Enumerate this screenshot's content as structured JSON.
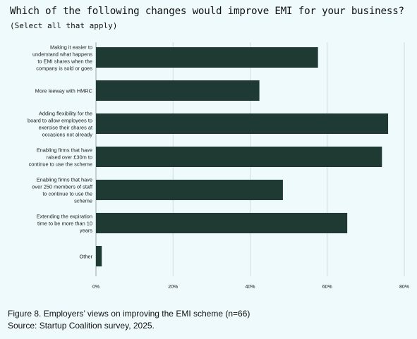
{
  "header": {
    "title": "Which of the following changes would improve EMI for your business?",
    "subtitle": "(Select all that apply)"
  },
  "caption": {
    "figure": "Figure 8. Employers’ views on improving the EMI scheme (n=66)",
    "source": "Source: Startup Coalition survey, 2025."
  },
  "colors": {
    "bar": "#1e3a33",
    "grid": "#cfdcdc",
    "axis": "#9aa6a6",
    "background": "#eefafc"
  },
  "chart_data": {
    "type": "bar",
    "orientation": "horizontal",
    "categories": [
      [
        "Making it easier to",
        "understand what happens",
        "to EMI shares when the",
        "company is sold or goes"
      ],
      [
        "More leeway with HMRC"
      ],
      [
        "Adding flexibility for the",
        "board to allow employees to",
        "exercise their shares at",
        "occasions not already"
      ],
      [
        "Enabling firms that have",
        "raised over £30m to",
        "continue to use the scheme"
      ],
      [
        "Enabling firms that have",
        "over 250 members of staff",
        "to continue to use the",
        "scheme"
      ],
      [
        "Extending the expiration",
        "time to be more than 10",
        "years"
      ],
      [
        "Other"
      ]
    ],
    "values": [
      57.6,
      42.4,
      75.8,
      74.2,
      48.5,
      65.2,
      1.5
    ],
    "xlim": [
      0,
      80
    ],
    "xticks": [
      0,
      20,
      40,
      60,
      80
    ],
    "xtick_labels": [
      "0%",
      "20%",
      "40%",
      "60%",
      "80%"
    ],
    "grid": true,
    "legend": "none"
  }
}
